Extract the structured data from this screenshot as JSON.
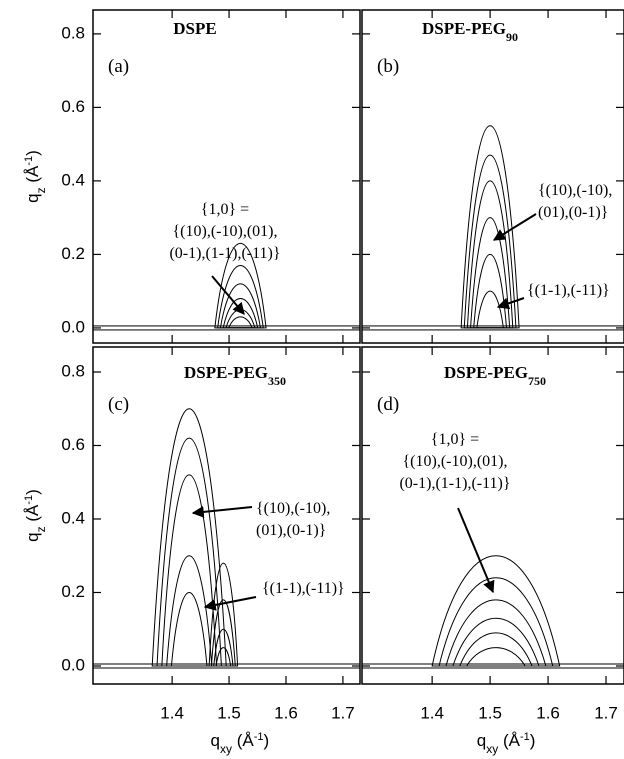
{
  "chart_data": [
    {
      "type": "contour",
      "title": "DSPE",
      "panel_label": "(a)",
      "xlim": [
        1.261,
        1.73
      ],
      "ylim": [
        -0.041,
        0.865
      ],
      "xticks": [
        1.4,
        1.5,
        1.6,
        1.7
      ],
      "yticks": [
        {
          "value": 0,
          "label": "0.0"
        },
        0.2,
        0.4,
        0.6,
        0.8
      ],
      "ylabel": [
        [
          "q",
          ""
        ],
        [
          "z",
          "sub"
        ],
        [
          " (Å",
          ""
        ],
        [
          "-1",
          "sup"
        ],
        [
          ")",
          ""
        ]
      ],
      "annotations": [
        [
          "{1,0} =",
          "{(10),(-10),(01),",
          "(0-1),(1-1),(-11)}"
        ]
      ],
      "peaks": [
        {
          "x": 1.52,
          "halfwidth": 0.045,
          "tops": [
            0.23,
            0.17,
            0.12,
            0.08,
            0.05,
            0.03
          ]
        }
      ]
    },
    {
      "type": "contour",
      "title": "DSPE-PEG",
      "title_sub": "90",
      "panel_label": "(b)",
      "xlim": [
        1.279,
        1.731
      ],
      "ylim": [
        -0.041,
        0.865
      ],
      "xticks": [
        1.4,
        1.5,
        1.6,
        1.7
      ],
      "yticks": [
        {
          "value": 0,
          "label": "0.0"
        },
        0.2,
        0.4,
        0.6,
        0.8
      ],
      "annotations": [
        [
          "{(10),(-10),",
          "(01),(0-1)}"
        ],
        [
          "{(1-1),(-11)}"
        ]
      ],
      "peaks": [
        {
          "x": 1.5,
          "halfwidth": 0.05,
          "tops": [
            0.55,
            0.47,
            0.4,
            0.3,
            0.2,
            0.1
          ]
        }
      ]
    },
    {
      "type": "contour",
      "title": "DSPE-PEG",
      "title_sub": "350",
      "panel_label": "(c)",
      "xlim": [
        1.261,
        1.73
      ],
      "ylim": [
        -0.049,
        0.868
      ],
      "xticks": [
        1.4,
        1.5,
        1.6,
        1.7
      ],
      "yticks": [
        {
          "value": 0,
          "label": "0.0"
        },
        0.2,
        0.4,
        0.6,
        0.8
      ],
      "xlabel": [
        [
          "q",
          ""
        ],
        [
          "xy",
          "sub"
        ],
        [
          " (Å",
          ""
        ],
        [
          "-1",
          "sup"
        ],
        [
          ")",
          ""
        ]
      ],
      "ylabel": [
        [
          "q",
          ""
        ],
        [
          "z",
          "sub"
        ],
        [
          " (Å",
          ""
        ],
        [
          "-1",
          "sup"
        ],
        [
          ")",
          ""
        ]
      ],
      "annotations": [
        [
          "{(10),(-10),",
          "(01),(0-1)}"
        ],
        [
          "{(1-1),(-11)}"
        ]
      ],
      "peaks": [
        {
          "x": 1.43,
          "halfwidth": 0.065,
          "tops": [
            0.7,
            0.62,
            0.52,
            0.3,
            0.2
          ]
        },
        {
          "x": 1.49,
          "halfwidth": 0.025,
          "tops": [
            0.28,
            0.18,
            0.1,
            0.05
          ]
        }
      ]
    },
    {
      "type": "contour",
      "title": "DSPE-PEG",
      "title_sub": "750",
      "panel_label": "(d)",
      "xlim": [
        1.279,
        1.731
      ],
      "ylim": [
        -0.049,
        0.868
      ],
      "xticks": [
        1.4,
        1.5,
        1.6,
        1.7
      ],
      "yticks": [
        {
          "value": 0,
          "label": "0.0"
        },
        0.2,
        0.4,
        0.6,
        0.8
      ],
      "xlabel": [
        [
          "q",
          ""
        ],
        [
          "xy",
          "sub"
        ],
        [
          " (Å",
          ""
        ],
        [
          "-1",
          "sup"
        ],
        [
          ")",
          ""
        ]
      ],
      "annotations": [
        [
          "{1,0} =",
          "{(10),(-10),(01),",
          "(0-1),(1-1),(-11)}"
        ]
      ],
      "peaks": [
        {
          "x": 1.51,
          "halfwidth": 0.11,
          "tops": [
            0.3,
            0.24,
            0.18,
            0.13,
            0.09,
            0.05
          ]
        }
      ]
    }
  ]
}
